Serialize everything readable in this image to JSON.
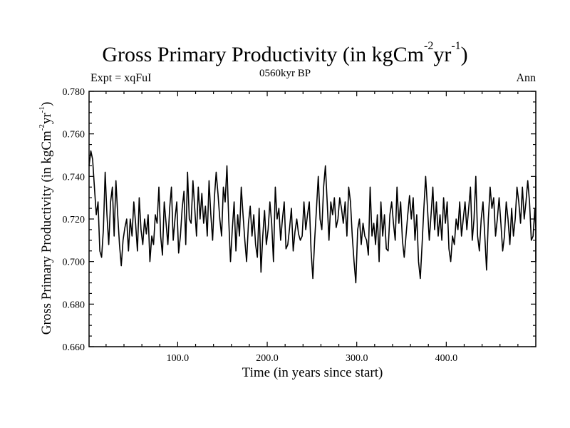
{
  "chart_data": {
    "type": "line",
    "title_main": "Gross Primary Productivity (in kgCm",
    "title_exp1": "-2",
    "title_mid": "yr",
    "title_exp2": "-1",
    "title_end": ")",
    "expt_label": "Expt = xqFuI",
    "period_label": "0560kyr BP",
    "season_label": "Ann",
    "xlabel": "Time (in years since start)",
    "ylabel_main": "Gross Primary Productivity (in kgCm",
    "ylabel_exp1": "-2",
    "ylabel_mid": "yr",
    "ylabel_exp2": "-1",
    "ylabel_end": ")",
    "xlim": [
      1,
      500
    ],
    "ylim": [
      0.66,
      0.78
    ],
    "xticks": [
      100,
      200,
      300,
      400
    ],
    "xtick_labels": [
      "100.0",
      "200.0",
      "300.0",
      "400.0"
    ],
    "yticks": [
      0.66,
      0.68,
      0.7,
      0.72,
      0.74,
      0.76,
      0.78
    ],
    "ytick_labels": [
      "0.660",
      "0.680",
      "0.700",
      "0.720",
      "0.740",
      "0.760",
      "0.780"
    ],
    "series": [
      {
        "name": "GPP annual mean",
        "color": "#000000",
        "x_start": 1,
        "x_step": 2,
        "values": [
          0.745,
          0.752,
          0.748,
          0.735,
          0.722,
          0.728,
          0.705,
          0.702,
          0.715,
          0.742,
          0.722,
          0.708,
          0.728,
          0.735,
          0.712,
          0.738,
          0.722,
          0.708,
          0.698,
          0.71,
          0.716,
          0.72,
          0.705,
          0.72,
          0.712,
          0.728,
          0.718,
          0.705,
          0.73,
          0.715,
          0.708,
          0.72,
          0.713,
          0.722,
          0.7,
          0.712,
          0.708,
          0.722,
          0.718,
          0.735,
          0.712,
          0.703,
          0.728,
          0.718,
          0.708,
          0.725,
          0.735,
          0.71,
          0.72,
          0.728,
          0.704,
          0.712,
          0.725,
          0.733,
          0.708,
          0.742,
          0.72,
          0.718,
          0.738,
          0.725,
          0.712,
          0.735,
          0.72,
          0.732,
          0.718,
          0.726,
          0.712,
          0.738,
          0.722,
          0.71,
          0.73,
          0.742,
          0.732,
          0.72,
          0.712,
          0.735,
          0.728,
          0.745,
          0.72,
          0.7,
          0.715,
          0.728,
          0.705,
          0.722,
          0.712,
          0.735,
          0.722,
          0.71,
          0.7,
          0.718,
          0.726,
          0.712,
          0.722,
          0.708,
          0.702,
          0.725,
          0.695,
          0.712,
          0.724,
          0.708,
          0.715,
          0.728,
          0.718,
          0.7,
          0.735,
          0.72,
          0.725,
          0.71,
          0.72,
          0.728,
          0.706,
          0.708,
          0.716,
          0.725,
          0.705,
          0.714,
          0.72,
          0.713,
          0.71,
          0.712,
          0.728,
          0.715,
          0.722,
          0.728,
          0.705,
          0.692,
          0.71,
          0.725,
          0.74,
          0.72,
          0.715,
          0.735,
          0.745,
          0.728,
          0.71,
          0.728,
          0.722,
          0.73,
          0.716,
          0.72,
          0.73,
          0.725,
          0.718,
          0.728,
          0.712,
          0.735,
          0.728,
          0.712,
          0.7,
          0.69,
          0.715,
          0.72,
          0.708,
          0.718,
          0.712,
          0.71,
          0.703,
          0.735,
          0.712,
          0.718,
          0.708,
          0.722,
          0.7,
          0.728,
          0.712,
          0.722,
          0.706,
          0.705,
          0.722,
          0.728,
          0.718,
          0.71,
          0.735,
          0.718,
          0.728,
          0.71,
          0.702,
          0.712,
          0.722,
          0.731,
          0.72,
          0.73,
          0.71,
          0.722,
          0.7,
          0.692,
          0.708,
          0.725,
          0.74,
          0.725,
          0.71,
          0.722,
          0.735,
          0.715,
          0.728,
          0.712,
          0.722,
          0.71,
          0.73,
          0.718,
          0.728,
          0.706,
          0.7,
          0.712,
          0.708,
          0.72,
          0.715,
          0.728,
          0.712,
          0.72,
          0.728,
          0.715,
          0.725,
          0.735,
          0.71,
          0.72,
          0.74,
          0.712,
          0.705,
          0.72,
          0.728,
          0.712,
          0.696,
          0.72,
          0.735,
          0.725,
          0.73,
          0.712,
          0.72,
          0.73,
          0.718,
          0.705,
          0.712,
          0.728,
          0.72,
          0.708,
          0.725,
          0.712,
          0.72,
          0.735,
          0.728,
          0.718,
          0.735,
          0.72,
          0.728,
          0.738,
          0.728,
          0.71,
          0.712,
          0.725,
          0.715,
          0.728,
          0.72,
          0.712,
          0.738,
          0.72,
          0.73,
          0.74,
          0.73,
          0.715,
          0.725,
          0.702,
          0.712,
          0.728,
          0.72,
          0.735,
          0.725,
          0.712,
          0.738,
          0.72,
          0.73,
          0.702,
          0.715,
          0.728,
          0.72,
          0.705,
          0.712,
          0.73,
          0.722,
          0.738,
          0.728,
          0.712,
          0.73,
          0.718,
          0.725,
          0.705,
          0.715,
          0.728,
          0.72,
          0.712,
          0.725,
          0.73,
          0.718,
          0.735,
          0.72,
          0.71,
          0.728,
          0.725,
          0.715,
          0.73,
          0.732,
          0.722,
          0.72,
          0.715,
          0.73,
          0.71,
          0.728,
          0.723,
          0.715,
          0.718,
          0.728,
          0.712,
          0.725,
          0.718,
          0.728,
          0.705,
          0.715,
          0.708,
          0.72,
          0.712,
          0.728,
          0.73,
          0.705,
          0.7,
          0.715,
          0.72,
          0.725,
          0.732,
          0.722,
          0.715,
          0.725,
          0.718,
          0.72,
          0.708,
          0.725,
          0.728,
          0.714,
          0.725,
          0.712,
          0.726,
          0.73,
          0.718,
          0.705,
          0.712,
          0.728,
          0.722,
          0.73,
          0.718,
          0.712,
          0.735,
          0.725,
          0.716,
          0.708,
          0.72,
          0.715,
          0.73,
          0.718,
          0.712,
          0.72,
          0.705,
          0.715,
          0.728,
          0.718,
          0.712,
          0.725,
          0.712,
          0.72,
          0.705,
          0.712,
          0.728,
          0.722,
          0.712,
          0.73,
          0.718,
          0.725,
          0.708,
          0.722,
          0.715,
          0.728,
          0.72,
          0.712,
          0.708,
          0.728,
          0.72,
          0.725,
          0.735,
          0.728,
          0.725,
          0.712,
          0.718,
          0.722,
          0.728,
          0.715,
          0.73,
          0.72,
          0.712,
          0.725,
          0.718,
          0.728,
          0.712,
          0.722,
          0.715,
          0.708,
          0.728,
          0.72,
          0.712,
          0.735,
          0.722,
          0.705,
          0.715,
          0.728,
          0.72,
          0.712,
          0.722,
          0.73,
          0.718,
          0.728,
          0.712,
          0.72,
          0.708,
          0.715,
          0.725,
          0.72,
          0.705,
          0.715,
          0.728,
          0.72,
          0.705,
          0.712,
          0.725,
          0.718,
          0.728,
          0.712,
          0.72,
          0.715,
          0.728,
          0.72,
          0.725,
          0.708,
          0.72,
          0.712,
          0.725,
          0.72,
          0.712,
          0.728,
          0.718,
          0.712,
          0.725,
          0.708,
          0.72,
          0.728,
          0.73,
          0.715,
          0.725,
          0.72,
          0.712,
          0.722,
          0.728,
          0.705,
          0.712,
          0.728,
          0.718,
          0.725,
          0.712,
          0.72,
          0.728,
          0.715,
          0.725,
          0.718,
          0.728,
          0.72,
          0.715,
          0.728,
          0.722,
          0.712,
          0.725,
          0.72,
          0.728,
          0.712,
          0.72,
          0.728,
          0.72,
          0.715,
          0.712,
          0.725,
          0.72,
          0.728,
          0.728
        ]
      }
    ]
  }
}
